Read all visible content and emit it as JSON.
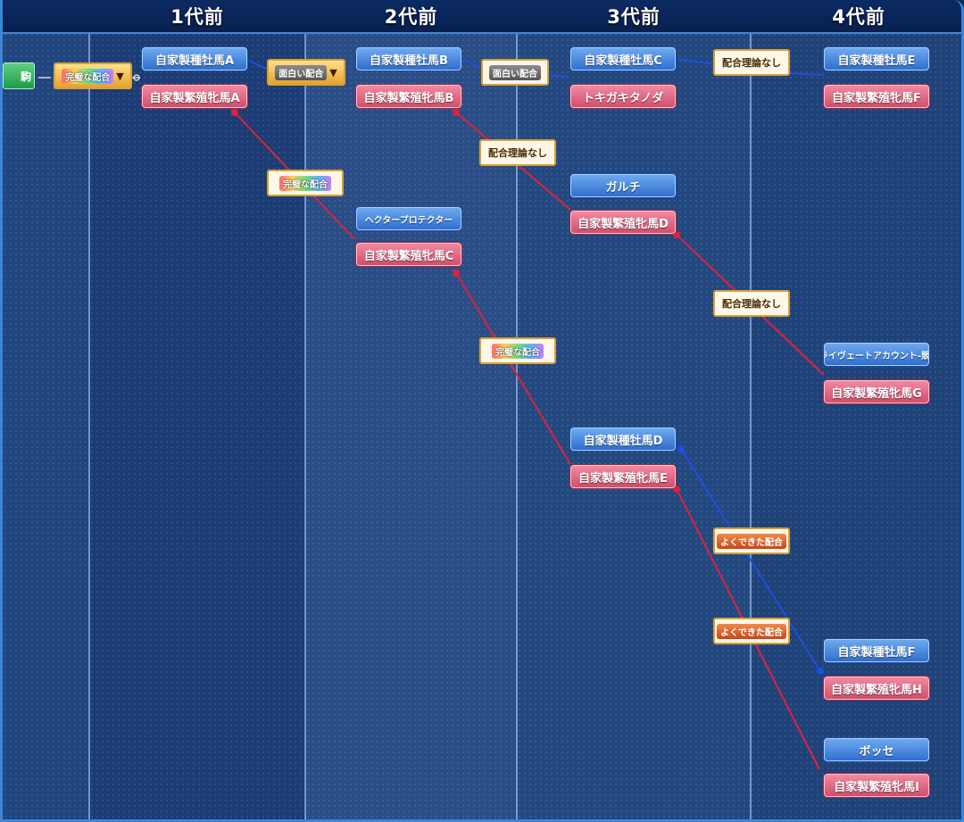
{
  "headers": [
    "1代前",
    "2代前",
    "3代前",
    "4代前"
  ],
  "child": {
    "label": "駒"
  },
  "root_tag": {
    "label": "完璧な配合",
    "dropdown": "▼"
  },
  "gen1": {
    "sire": "自家製種牡馬A",
    "dam": "自家製繁殖牝馬A"
  },
  "gen2": {
    "sire": "自家製種牡馬B",
    "dam": "自家製繁殖牝馬B",
    "sire2": "ヘクタープロテクター",
    "dam2": "自家製繁殖牝馬C"
  },
  "gen3": {
    "sire1": "自家製種牡馬C",
    "dam1": "トキガキタノダ",
    "sire2": "ガルチ",
    "dam2": "自家製繁殖牝馬D",
    "sire4": "自家製種牡馬D",
    "dam4": "自家製繁殖牝馬E"
  },
  "gen4": {
    "s1": "自家製種牡馬E",
    "d1": "自家製繁殖牝馬F",
    "s4": "プライヴェートアカウント-競走-",
    "d4": "自家製繁殖牝馬G",
    "s7": "自家製種牡馬F",
    "d7": "自家製繁殖牝馬H",
    "s8": "ボッセ",
    "d8": "自家製繁殖牝馬I"
  },
  "tags": {
    "t1": {
      "label": "面白い配合",
      "dropdown": "▼"
    },
    "t2": {
      "label": "面白い配合"
    },
    "t3": {
      "label": "配合理論なし"
    },
    "t4": {
      "label": "配合理論なし"
    },
    "t5": {
      "label": "完璧な配合"
    },
    "t6": {
      "label": "配合理論なし"
    },
    "t7": {
      "label": "完璧な配合"
    },
    "t8": {
      "label": "よくできた配合"
    },
    "t9": {
      "label": "よくできた配合"
    }
  },
  "colors": {
    "sire_line": "#1f4fe0",
    "dam_line": "#e0223a"
  }
}
